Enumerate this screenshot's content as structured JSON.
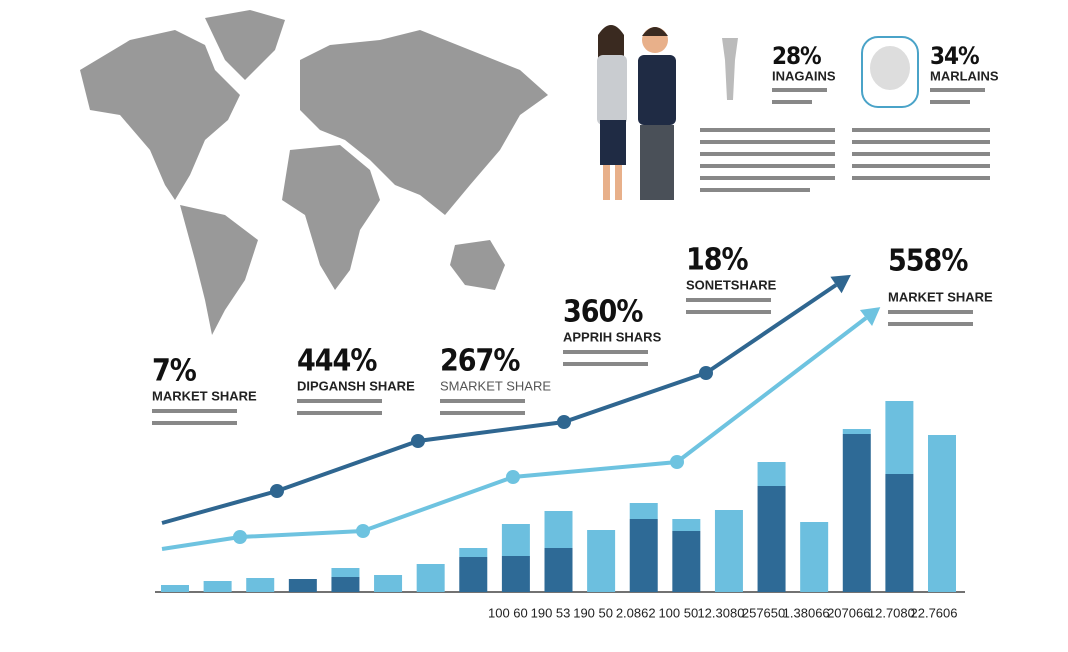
{
  "chart_data": [
    {
      "type": "bar",
      "stacked": true,
      "categories": [
        null,
        null,
        null,
        null,
        null,
        null,
        null,
        null,
        "100 60",
        "190 53",
        "190 50",
        "2.0862",
        "100 50",
        "12.3080",
        "257650",
        "1.38066",
        "207066",
        "12.7080",
        "22.7606"
      ],
      "series": [
        {
          "color": "#2e6a96",
          "values": [
            null,
            null,
            null,
            13,
            15,
            null,
            null,
            35,
            36,
            44,
            null,
            73,
            61,
            null,
            106,
            null,
            158,
            118,
            null
          ]
        },
        {
          "color": "#6cbfdf",
          "values": [
            7,
            11,
            14,
            null,
            9,
            17,
            28,
            9,
            32,
            37,
            62,
            16,
            12,
            82,
            24,
            70,
            5,
            73,
            157
          ]
        }
      ],
      "ylim": [
        0,
        200
      ]
    },
    {
      "type": "line",
      "xlim": [
        150,
        970
      ],
      "ylim": [
        0,
        400
      ],
      "series": [
        {
          "color": "#2f6690",
          "x": [
            162,
            277,
            418,
            564,
            706,
            836
          ],
          "values": [
            69,
            101,
            151,
            170,
            219,
            307
          ]
        },
        {
          "color": "#6ec3e0",
          "x": [
            162,
            240,
            363,
            513,
            677,
            866
          ],
          "values": [
            43,
            55,
            61,
            115,
            130,
            274
          ]
        }
      ],
      "annotations": [
        {
          "value": "7%",
          "label": "MARKET SHARE"
        },
        {
          "value": "444%",
          "label": "DIPGANSH SHARE"
        },
        {
          "value": "267%",
          "label": "SMARKET SHARE"
        },
        {
          "value": "360%",
          "label": "APPRIH SHARS"
        },
        {
          "value": "18%",
          "label": "SONETSHARE"
        },
        {
          "value": "558%",
          "label": "MARKET SHARE"
        }
      ]
    }
  ],
  "callouts": [
    {
      "value": "28%",
      "label": "INAGAINS"
    },
    {
      "value": "34%",
      "label": "MARLAINS"
    }
  ]
}
